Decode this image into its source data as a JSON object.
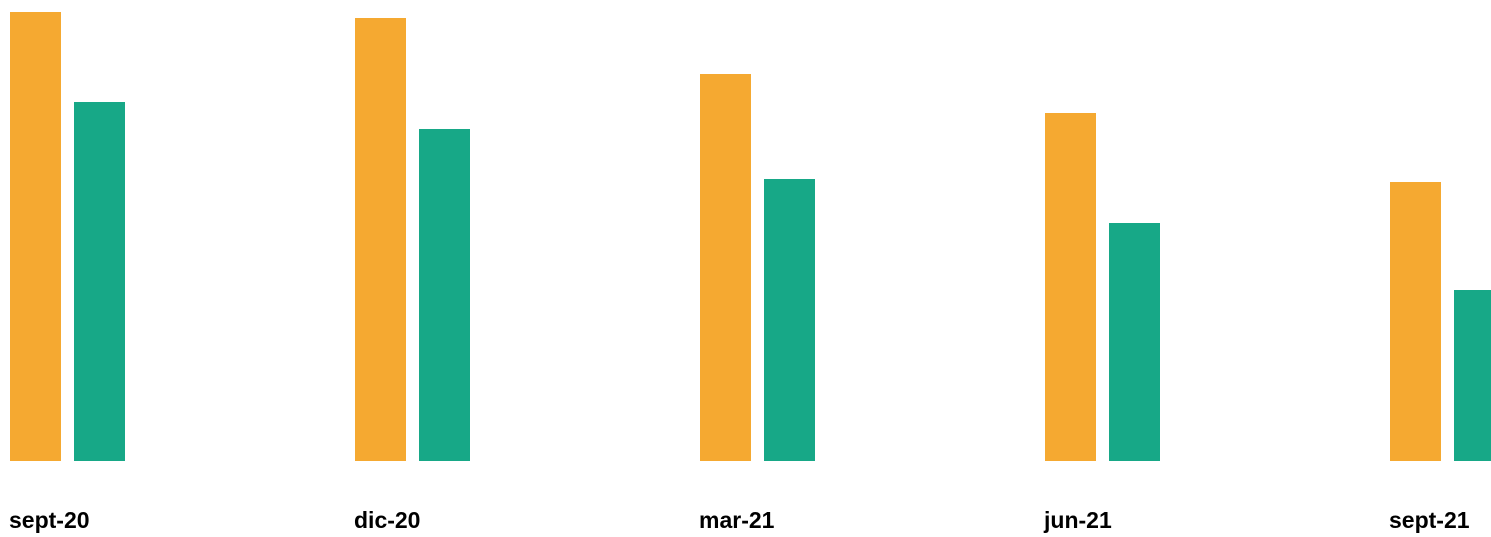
{
  "chart_data": {
    "type": "bar",
    "categories": [
      "sept-20",
      "dic-20",
      "mar-21",
      "jun-21",
      "sept-21"
    ],
    "series": [
      {
        "color": "#F5A931",
        "values": [
          449,
          443,
          387,
          348,
          279
        ]
      },
      {
        "color": "#17A887",
        "values": [
          359,
          332,
          282,
          238,
          171
        ]
      }
    ],
    "ylim": [
      0,
      449
    ]
  }
}
